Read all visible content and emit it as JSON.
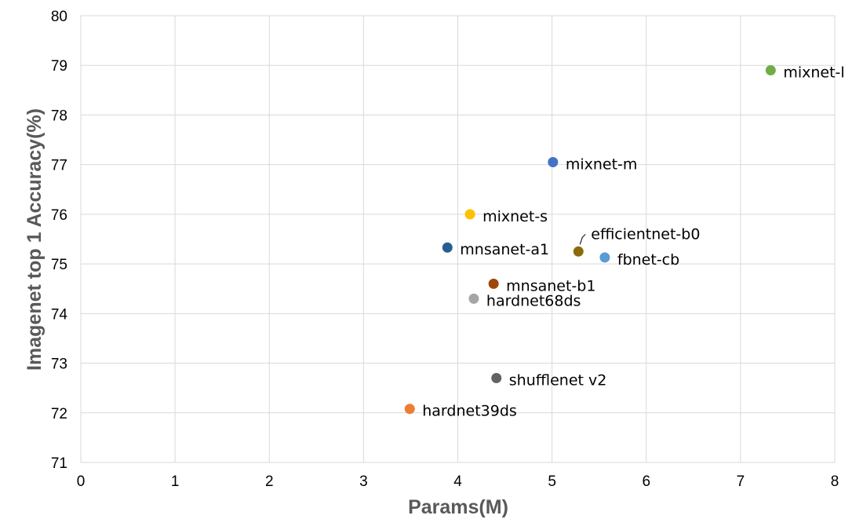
{
  "chart_data": {
    "type": "scatter",
    "title": "",
    "xlabel": "Params(M)",
    "ylabel": "Imagenet top 1 Accuracy(%)",
    "xlim": [
      0,
      8
    ],
    "ylim": [
      71,
      80
    ],
    "xticks": [
      0,
      1,
      2,
      3,
      4,
      5,
      6,
      7,
      8
    ],
    "yticks": [
      71,
      72,
      73,
      74,
      75,
      76,
      77,
      78,
      79,
      80
    ],
    "grid": true,
    "legend": "none",
    "points": [
      {
        "label": "mixnet-l",
        "x": 7.32,
        "y": 78.9,
        "color": "#70ad47"
      },
      {
        "label": "mixnet-m",
        "x": 5.01,
        "y": 77.05,
        "color": "#4472c4"
      },
      {
        "label": "mixnet-s",
        "x": 4.13,
        "y": 76.0,
        "color": "#ffc000"
      },
      {
        "label": "efficientnet-b0",
        "x": 5.28,
        "y": 75.25,
        "color": "#8c6b0c"
      },
      {
        "label": "mnsanet-a1",
        "x": 3.89,
        "y": 75.33,
        "color": "#255e91"
      },
      {
        "label": "fbnet-cb",
        "x": 5.56,
        "y": 75.13,
        "color": "#5b9bd5"
      },
      {
        "label": "mnsanet-b1",
        "x": 4.38,
        "y": 74.6,
        "color": "#9e480e"
      },
      {
        "label": "hardnet68ds",
        "x": 4.17,
        "y": 74.3,
        "color": "#a5a5a5"
      },
      {
        "label": "shufflenet v2",
        "x": 4.41,
        "y": 72.7,
        "color": "#636363"
      },
      {
        "label": "hardnet39ds",
        "x": 3.49,
        "y": 72.08,
        "color": "#ed7d31"
      }
    ]
  }
}
